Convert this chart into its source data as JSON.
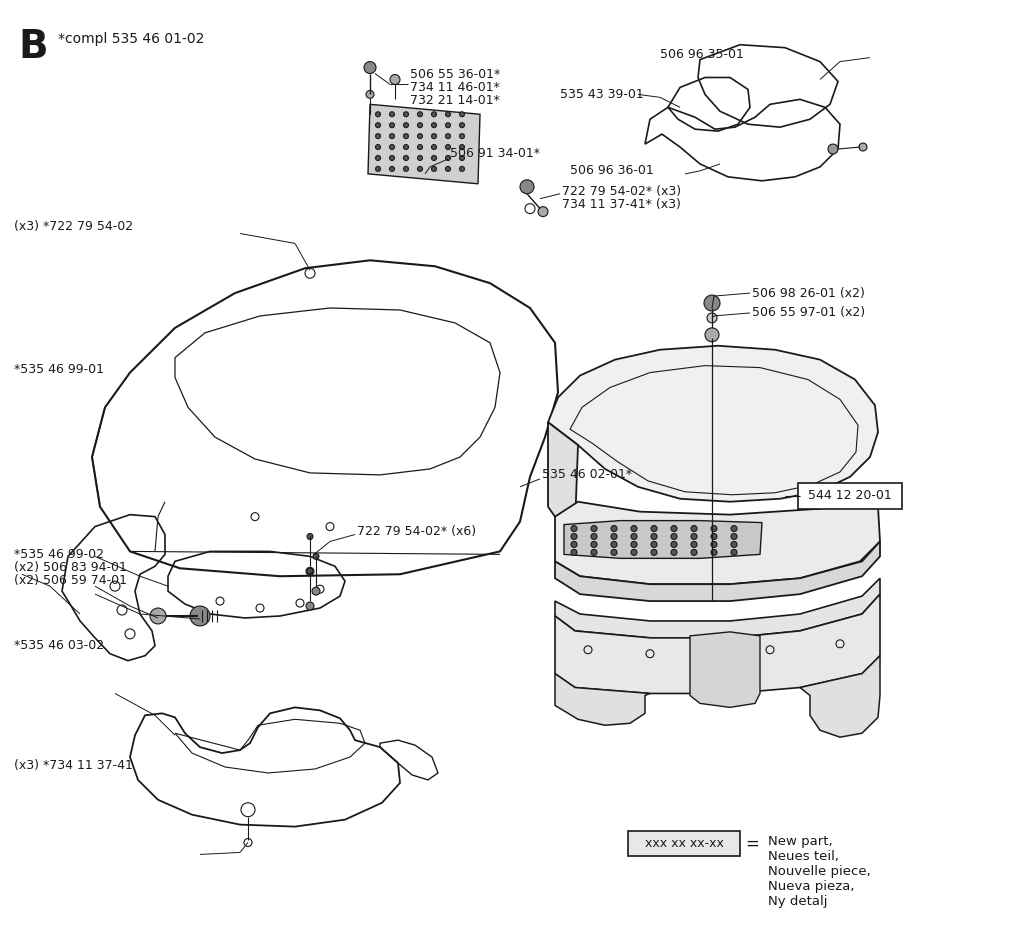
{
  "title_letter": "B",
  "title_compl": "*compl 535 46 01-02",
  "background_color": "#ffffff",
  "line_color": "#1a1a1a",
  "text_color": "#1a1a1a",
  "fs": 9.0,
  "legend_box_text": "xxx xx xx-xx",
  "legend_desc": "New part,\nNeues teil,\nNouvelle piece,\nNueva pieza,\nNy detalj"
}
